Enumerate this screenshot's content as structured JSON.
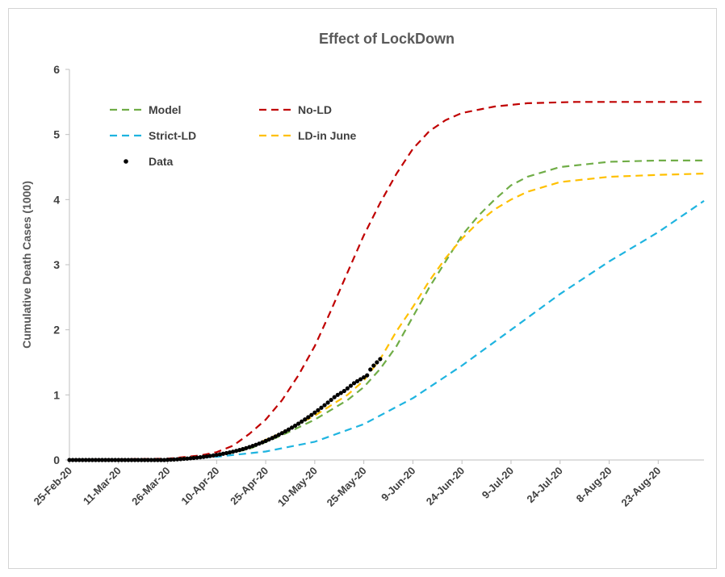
{
  "chart_data": {
    "type": "line",
    "title": "Effect of LockDown",
    "xlabel": "",
    "ylabel": "Cumulative Death Cases (1000)",
    "ylim": [
      0,
      6
    ],
    "yticks": [
      "0",
      "1",
      "2",
      "3",
      "4",
      "5",
      "6"
    ],
    "x_tick_labels": [
      "25-Feb-20",
      "11-Mar-20",
      "26-Mar-20",
      "10-Apr-20",
      "25-Apr-20",
      "10-May-20",
      "25-May-20",
      "9-Jun-20",
      "24-Jun-20",
      "9-Jul-20",
      "24-Jul-20",
      "8-Aug-20",
      "23-Aug-20"
    ],
    "xlim": [
      "25-Feb-20",
      "6-Sep-20"
    ],
    "grid": false,
    "legend_placement": "top-left",
    "series": [
      {
        "name": "Model",
        "style": "dashed",
        "color": "#70ad47",
        "points": [
          [
            "25-Feb-20",
            0
          ],
          [
            "26-Mar-20",
            0.01
          ],
          [
            "10-Apr-20",
            0.06
          ],
          [
            "20-Apr-20",
            0.17
          ],
          [
            "30-Apr-20",
            0.38
          ],
          [
            "10-May-20",
            0.62
          ],
          [
            "20-May-20",
            0.92
          ],
          [
            "25-May-20",
            1.12
          ],
          [
            "30-May-20",
            1.4
          ],
          [
            "4-Jun-20",
            1.75
          ],
          [
            "9-Jun-20",
            2.2
          ],
          [
            "14-Jun-20",
            2.65
          ],
          [
            "19-Jun-20",
            3.05
          ],
          [
            "24-Jun-20",
            3.45
          ],
          [
            "29-Jun-20",
            3.75
          ],
          [
            "4-Jul-20",
            4.0
          ],
          [
            "9-Jul-20",
            4.22
          ],
          [
            "14-Jul-20",
            4.35
          ],
          [
            "24-Jul-20",
            4.5
          ],
          [
            "8-Aug-20",
            4.58
          ],
          [
            "23-Aug-20",
            4.6
          ],
          [
            "6-Sep-20",
            4.6
          ]
        ]
      },
      {
        "name": "No-LD",
        "style": "dashed",
        "color": "#c00000",
        "points": [
          [
            "25-Feb-20",
            0
          ],
          [
            "26-Mar-20",
            0.02
          ],
          [
            "5-Apr-20",
            0.07
          ],
          [
            "10-Apr-20",
            0.12
          ],
          [
            "15-Apr-20",
            0.22
          ],
          [
            "20-Apr-20",
            0.4
          ],
          [
            "25-Apr-20",
            0.62
          ],
          [
            "30-Apr-20",
            0.92
          ],
          [
            "5-May-20",
            1.3
          ],
          [
            "10-May-20",
            1.75
          ],
          [
            "15-May-20",
            2.3
          ],
          [
            "20-May-20",
            2.88
          ],
          [
            "25-May-20",
            3.45
          ],
          [
            "30-May-20",
            3.95
          ],
          [
            "4-Jun-20",
            4.4
          ],
          [
            "9-Jun-20",
            4.78
          ],
          [
            "14-Jun-20",
            5.05
          ],
          [
            "19-Jun-20",
            5.22
          ],
          [
            "24-Jun-20",
            5.33
          ],
          [
            "4-Jul-20",
            5.43
          ],
          [
            "14-Jul-20",
            5.48
          ],
          [
            "29-Jul-20",
            5.5
          ],
          [
            "6-Sep-20",
            5.5
          ]
        ]
      },
      {
        "name": "Strict-LD",
        "style": "dashed",
        "color": "#1fb4e0",
        "points": [
          [
            "25-Feb-20",
            0
          ],
          [
            "26-Mar-20",
            0.01
          ],
          [
            "10-Apr-20",
            0.05
          ],
          [
            "25-Apr-20",
            0.13
          ],
          [
            "10-May-20",
            0.28
          ],
          [
            "25-May-20",
            0.55
          ],
          [
            "9-Jun-20",
            0.95
          ],
          [
            "24-Jun-20",
            1.45
          ],
          [
            "9-Jul-20",
            2.0
          ],
          [
            "24-Jul-20",
            2.55
          ],
          [
            "8-Aug-20",
            3.05
          ],
          [
            "23-Aug-20",
            3.5
          ],
          [
            "6-Sep-20",
            3.98
          ]
        ]
      },
      {
        "name": "LD-in June",
        "style": "dashed",
        "color": "#ffc000",
        "points": [
          [
            "25-Feb-20",
            0
          ],
          [
            "26-Mar-20",
            0.01
          ],
          [
            "10-Apr-20",
            0.07
          ],
          [
            "20-Apr-20",
            0.2
          ],
          [
            "30-Apr-20",
            0.42
          ],
          [
            "10-May-20",
            0.68
          ],
          [
            "20-May-20",
            1.0
          ],
          [
            "25-May-20",
            1.22
          ],
          [
            "30-May-20",
            1.55
          ],
          [
            "4-Jun-20",
            1.98
          ],
          [
            "9-Jun-20",
            2.35
          ],
          [
            "14-Jun-20",
            2.75
          ],
          [
            "19-Jun-20",
            3.1
          ],
          [
            "24-Jun-20",
            3.4
          ],
          [
            "29-Jun-20",
            3.65
          ],
          [
            "4-Jul-20",
            3.85
          ],
          [
            "9-Jul-20",
            4.0
          ],
          [
            "14-Jul-20",
            4.12
          ],
          [
            "24-Jul-20",
            4.27
          ],
          [
            "8-Aug-20",
            4.35
          ],
          [
            "23-Aug-20",
            4.38
          ],
          [
            "6-Sep-20",
            4.4
          ]
        ]
      },
      {
        "name": "Data",
        "style": "markers",
        "color": "#000000",
        "x_start": "25-Feb-20",
        "x_step_days": 1,
        "values": [
          0,
          0,
          0,
          0,
          0,
          0,
          0,
          0,
          0,
          0,
          0,
          0,
          0,
          0,
          0,
          0,
          0,
          0,
          0,
          0,
          0,
          0,
          0,
          0,
          0,
          0,
          0,
          0,
          0,
          0,
          0.003,
          0.005,
          0.008,
          0.011,
          0.014,
          0.018,
          0.022,
          0.026,
          0.031,
          0.036,
          0.042,
          0.048,
          0.055,
          0.062,
          0.07,
          0.078,
          0.087,
          0.096,
          0.106,
          0.117,
          0.128,
          0.14,
          0.153,
          0.167,
          0.182,
          0.198,
          0.215,
          0.233,
          0.252,
          0.272,
          0.293,
          0.315,
          0.338,
          0.362,
          0.387,
          0.413,
          0.44,
          0.468,
          0.497,
          0.527,
          0.558,
          0.59,
          0.623,
          0.657,
          0.692,
          0.728,
          0.765,
          0.803,
          0.842,
          0.882,
          0.923,
          0.965,
          1.0,
          1.03,
          1.06,
          1.1,
          1.14,
          1.18,
          1.21,
          1.24,
          1.27,
          1.3,
          1.39,
          1.45,
          1.5,
          1.55
        ]
      }
    ]
  }
}
